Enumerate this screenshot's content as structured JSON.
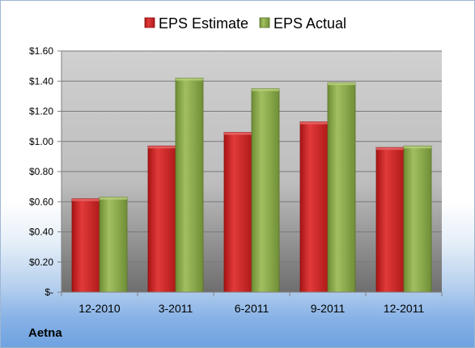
{
  "company_label": "Aetna",
  "colors": {
    "estimate": "#cc2222",
    "actual": "#8aa84a"
  },
  "chart_data": {
    "type": "bar",
    "title": "",
    "xlabel": "",
    "ylabel": "",
    "categories": [
      "12-2010",
      "3-2011",
      "6-2011",
      "9-2011",
      "12-2011"
    ],
    "series": [
      {
        "name": "EPS Estimate",
        "values": [
          0.62,
          0.97,
          1.06,
          1.13,
          0.96
        ]
      },
      {
        "name": "EPS Actual",
        "values": [
          0.63,
          1.42,
          1.35,
          1.39,
          0.97
        ]
      }
    ],
    "ylim": [
      0,
      1.6
    ],
    "yticks": [
      0,
      0.2,
      0.4,
      0.6,
      0.8,
      1.0,
      1.2,
      1.4,
      1.6
    ],
    "ytick_labels": [
      "$-",
      "$0.20",
      "$0.40",
      "$0.60",
      "$0.80",
      "$1.00",
      "$1.20",
      "$1.40",
      "$1.60"
    ],
    "grid": true,
    "legend_position": "top"
  }
}
